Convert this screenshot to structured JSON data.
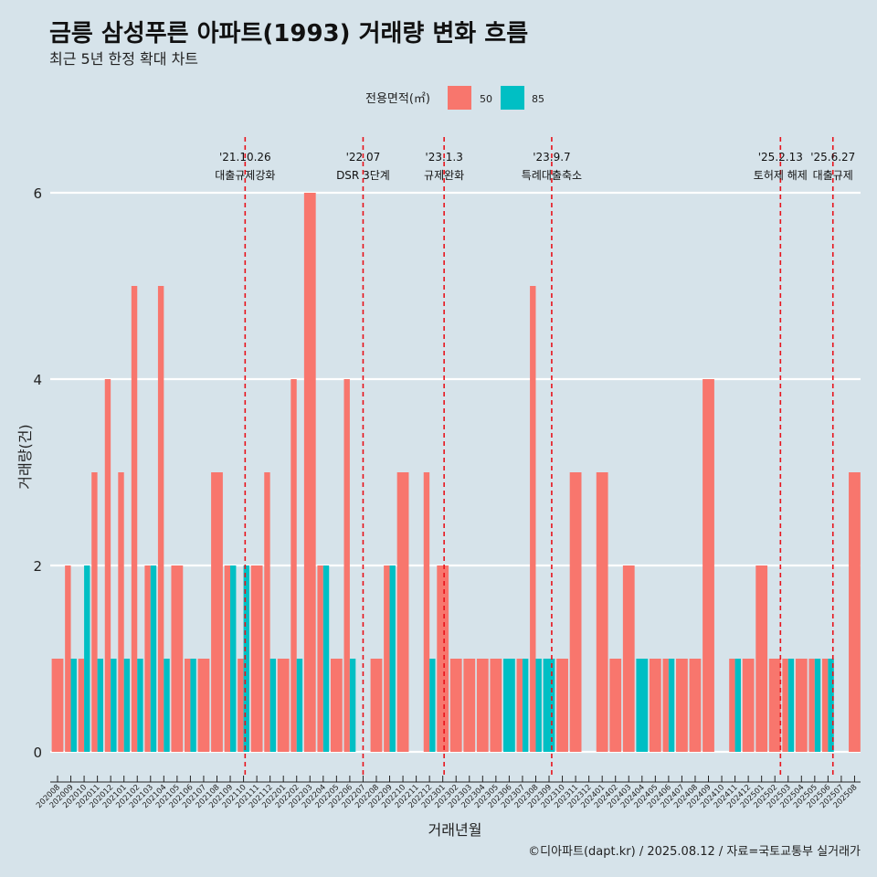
{
  "chart_data": {
    "type": "bar",
    "title": "금릉 삼성푸른 아파트(1993) 거래량 변화 흐름",
    "subtitle": "최근 5년 한정 확대 차트",
    "xlabel": "거래년월",
    "ylabel": "거래량(건)",
    "caption": "©디아파트(dapt.kr) / 2025.08.12 / 자료=국토교통부 실거래가",
    "legend": {
      "title": "전용면적(㎡)",
      "position": "top"
    },
    "colors": {
      "background": "#d6e3ea",
      "gridline": "#ffffff",
      "event_line": "#e8131b",
      "s50": "#f8766d",
      "s85": "#00bfc4"
    },
    "ylim": [
      0,
      6
    ],
    "yticks": [
      0,
      2,
      4,
      6
    ],
    "grid": true,
    "categories": [
      "202008",
      "202009",
      "202010",
      "202011",
      "202012",
      "202101",
      "202102",
      "202103",
      "202104",
      "202105",
      "202106",
      "202107",
      "202108",
      "202109",
      "202110",
      "202111",
      "202112",
      "202201",
      "202202",
      "202203",
      "202204",
      "202205",
      "202206",
      "202207",
      "202208",
      "202209",
      "202210",
      "202211",
      "202212",
      "202301",
      "202302",
      "202303",
      "202304",
      "202305",
      "202306",
      "202307",
      "202308",
      "202309",
      "202310",
      "202311",
      "202312",
      "202401",
      "202402",
      "202403",
      "202404",
      "202405",
      "202406",
      "202407",
      "202408",
      "202409",
      "202410",
      "202411",
      "202412",
      "202501",
      "202502",
      "202503",
      "202504",
      "202505",
      "202506",
      "202507",
      "202508"
    ],
    "series": [
      {
        "name": "50",
        "values": [
          1,
          2,
          1,
          3,
          4,
          3,
          5,
          2,
          5,
          2,
          1,
          1,
          3,
          2,
          1,
          2,
          3,
          1,
          4,
          6,
          2,
          1,
          4,
          0,
          1,
          2,
          3,
          0,
          3,
          2,
          1,
          1,
          1,
          1,
          0,
          1,
          5,
          0,
          1,
          3,
          0,
          3,
          1,
          2,
          0,
          1,
          1,
          1,
          1,
          4,
          0,
          1,
          1,
          2,
          1,
          1,
          1,
          1,
          1,
          0,
          3
        ]
      },
      {
        "name": "85",
        "values": [
          0,
          1,
          2,
          1,
          1,
          1,
          1,
          2,
          1,
          0,
          1,
          0,
          0,
          2,
          2,
          0,
          1,
          0,
          1,
          0,
          2,
          0,
          1,
          0,
          0,
          2,
          0,
          0,
          1,
          0,
          0,
          0,
          0,
          0,
          1,
          1,
          1,
          1,
          0,
          0,
          0,
          0,
          0,
          0,
          1,
          0,
          1,
          0,
          0,
          0,
          0,
          1,
          0,
          0,
          0,
          1,
          0,
          1,
          1,
          0,
          0
        ]
      }
    ],
    "events": [
      {
        "category": "202110",
        "offset": 0.12,
        "date": "'21.10.26",
        "label": "대출규제강화"
      },
      {
        "category": "202207",
        "offset": 0.0,
        "date": "'22.07",
        "label": "DSR 3단계"
      },
      {
        "category": "202301",
        "offset": 0.1,
        "date": "'23.1.3",
        "label": "규제완화"
      },
      {
        "category": "202309",
        "offset": 0.2,
        "date": "'23.9.7",
        "label": "특례대출축소"
      },
      {
        "category": "202502",
        "offset": 0.42,
        "date": "'25.2.13",
        "label": "토허제 해제"
      },
      {
        "category": "202506",
        "offset": 0.37,
        "date": "'25.6.27",
        "label": "대출규제"
      }
    ]
  }
}
